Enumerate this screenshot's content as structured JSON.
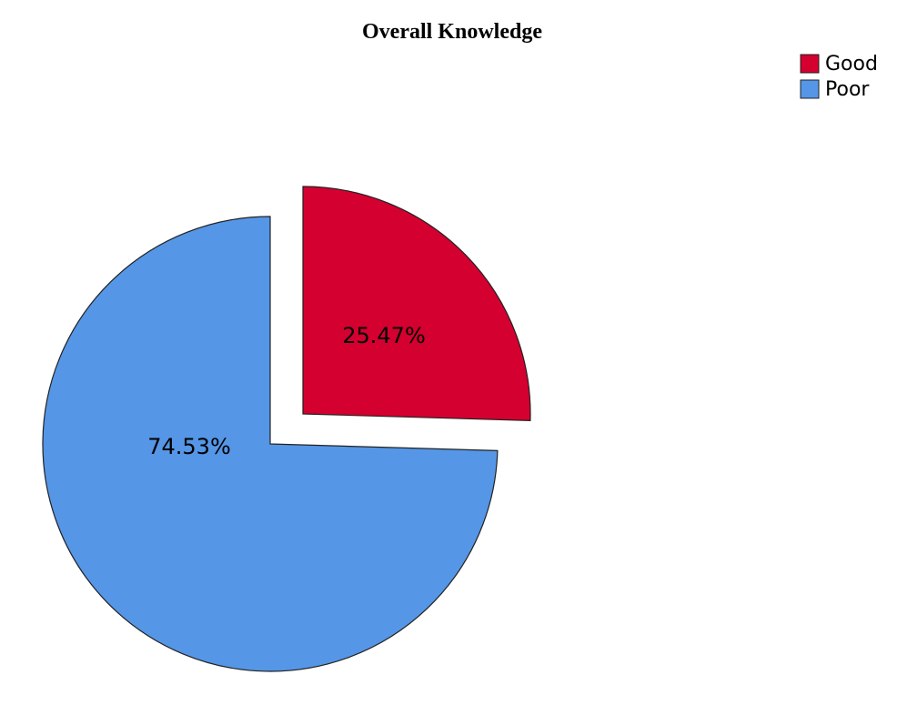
{
  "chart_data": {
    "type": "pie",
    "title": "Overall Knowledge",
    "categories": [
      "Good",
      "Poor"
    ],
    "values": [
      25.47,
      74.53
    ],
    "value_labels": [
      "25.47%",
      "74.53%"
    ],
    "colors": [
      "#d4002f",
      "#5596e6"
    ],
    "legend": "top-right"
  }
}
